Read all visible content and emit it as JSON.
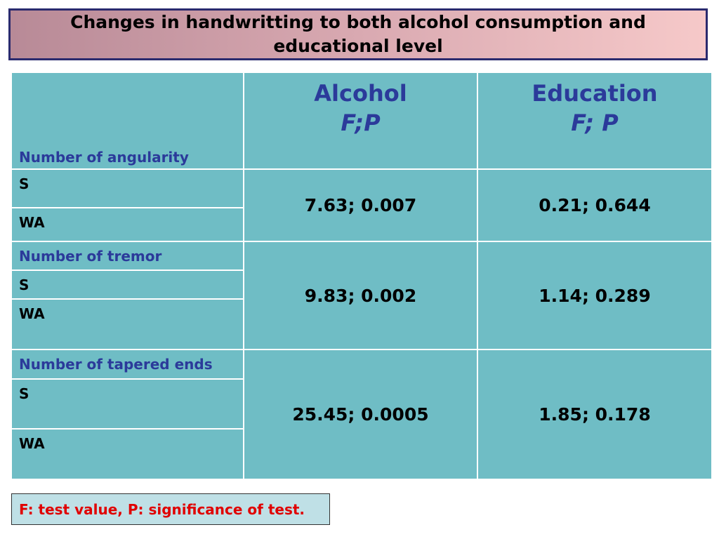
{
  "title": "Changes in handwritting to both alcohol consumption and educational level",
  "table": {
    "header": {
      "row_label": "Number of angularity",
      "col1_line1": "Alcohol",
      "col1_line2": "F;P",
      "col2_line1": "Education",
      "col2_line2": "F; P"
    },
    "groups": [
      {
        "name": "",
        "rows": [
          "S",
          "WA"
        ],
        "alcohol": "7.63; 0.007",
        "education": "0.21; 0.644"
      },
      {
        "name": "Number of tremor",
        "rows": [
          "S",
          "WA"
        ],
        "alcohol": "9.83; 0.002",
        "education": "1.14; 0.289"
      },
      {
        "name": "Number of tapered ends",
        "rows": [
          "S",
          "WA"
        ],
        "alcohol": "25.45; 0.0005",
        "education": "1.85; 0.178"
      }
    ]
  },
  "note": "F: test value, P: significance of test.",
  "colors": {
    "cell_bg": "#6fbdc5",
    "header_text": "#2b3a9a",
    "note_text": "#e00000",
    "title_border": "#2a2a6e"
  }
}
